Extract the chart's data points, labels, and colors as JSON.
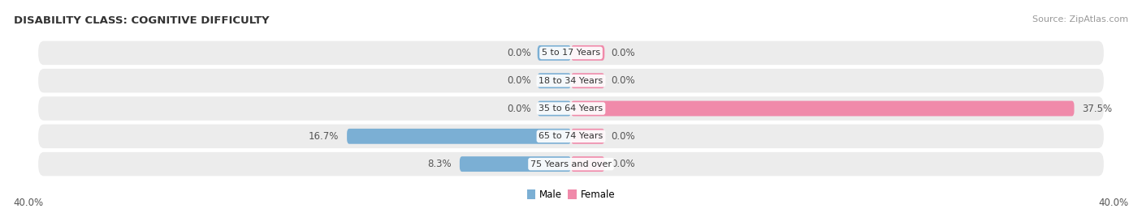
{
  "title": "DISABILITY CLASS: COGNITIVE DIFFICULTY",
  "source": "Source: ZipAtlas.com",
  "categories": [
    "5 to 17 Years",
    "18 to 34 Years",
    "35 to 64 Years",
    "65 to 74 Years",
    "75 Years and over"
  ],
  "male_values": [
    0.0,
    0.0,
    0.0,
    16.7,
    8.3
  ],
  "female_values": [
    0.0,
    0.0,
    37.5,
    0.0,
    0.0
  ],
  "male_color": "#7bafd4",
  "female_color": "#f08aaa",
  "row_bg_color": "#ececec",
  "axis_max": 40.0,
  "bar_height": 0.55,
  "stub_size": 2.5,
  "title_fontsize": 9.5,
  "label_fontsize": 8.5,
  "category_fontsize": 8.0,
  "source_fontsize": 8.0,
  "background_color": "#ffffff",
  "label_color": "#555555",
  "title_color": "#333333",
  "source_color": "#999999"
}
